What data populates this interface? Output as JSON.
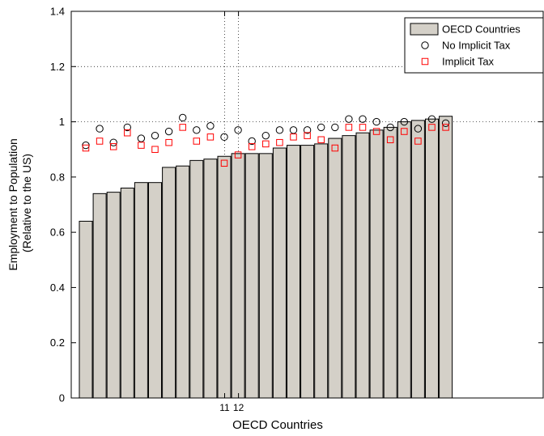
{
  "chart_data": {
    "type": "bar",
    "xlabel": "OECD Countries",
    "ylabel_lines": [
      "Employment to Population",
      "(Relative to the US)"
    ],
    "ylim": [
      0,
      1.4
    ],
    "yticks": [
      0,
      0.2,
      0.4,
      0.6,
      0.8,
      1,
      1.2,
      1.4
    ],
    "ytick_labels": [
      "0",
      "0.2",
      "0.4",
      "0.6",
      "0.8",
      "1",
      "1.2",
      "1.4"
    ],
    "xticks": [
      11,
      12
    ],
    "xtick_labels": [
      "11",
      "12"
    ],
    "grid": "dotted vertical lines at ticks 11 and 12; dotted horizontal lines at 1 and 1.2",
    "legend_position": "top-right",
    "legend": [
      {
        "label": "OECD Countries",
        "marker": "bar"
      },
      {
        "label": "No Implicit Tax",
        "marker": "circle"
      },
      {
        "label": "Implicit Tax",
        "marker": "square"
      }
    ],
    "colors": {
      "bar_fill": "#d4d0c8",
      "circle": "#000000",
      "square": "#ff0000"
    },
    "series": [
      {
        "name": "OECD Countries",
        "marker": "bar",
        "values": [
          0.64,
          0.74,
          0.745,
          0.76,
          0.78,
          0.78,
          0.835,
          0.84,
          0.86,
          0.865,
          0.875,
          0.885,
          0.885,
          0.885,
          0.905,
          0.915,
          0.915,
          0.92,
          0.94,
          0.95,
          0.96,
          0.97,
          0.98,
          1.0,
          1.005,
          1.01,
          1.02
        ]
      },
      {
        "name": "No Implicit Tax",
        "marker": "circle",
        "values": [
          0.915,
          0.975,
          0.925,
          0.98,
          0.94,
          0.95,
          0.965,
          1.015,
          0.97,
          0.985,
          0.945,
          0.97,
          0.93,
          0.95,
          0.97,
          0.97,
          0.97,
          0.98,
          0.98,
          1.01,
          1.01,
          1.0,
          0.98,
          1.0,
          0.975,
          1.01,
          0.995
        ]
      },
      {
        "name": "Implicit Tax",
        "marker": "square",
        "values": [
          0.905,
          0.93,
          0.91,
          0.96,
          0.915,
          0.9,
          0.925,
          0.98,
          0.93,
          0.945,
          0.85,
          0.88,
          0.91,
          0.92,
          0.925,
          0.945,
          0.95,
          0.935,
          0.905,
          0.98,
          0.98,
          0.965,
          0.935,
          0.965,
          0.93,
          0.98,
          0.98
        ]
      }
    ]
  }
}
